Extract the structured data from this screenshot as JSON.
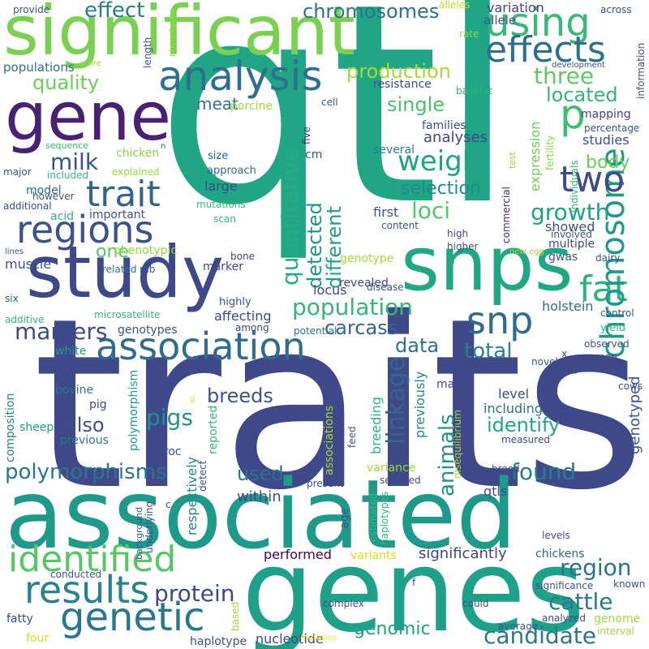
{
  "words": [
    {
      "text": "qtl",
      "color": "#21a685"
    },
    {
      "text": "traits",
      "color": "#3f4889"
    },
    {
      "text": "associated",
      "color": "#1f9a8a"
    },
    {
      "text": "significant",
      "color": "#7ad151"
    },
    {
      "text": "genes",
      "color": "#1fa088"
    },
    {
      "text": "gene",
      "color": "#482173"
    },
    {
      "text": "study",
      "color": "#3e4989"
    },
    {
      "text": "snps",
      "color": "#22a785"
    },
    {
      "text": "analysis",
      "color": "#2e6e8e"
    },
    {
      "text": "using",
      "color": "#38b977"
    },
    {
      "text": "effects",
      "color": "#2e6f8e"
    },
    {
      "text": "regions",
      "color": "#3b528b"
    },
    {
      "text": "trait",
      "color": "#32648e"
    },
    {
      "text": "association",
      "color": "#2f6c8e"
    },
    {
      "text": "identified",
      "color": "#56c667"
    },
    {
      "text": "results",
      "color": "#26828e"
    },
    {
      "text": "genetic",
      "color": "#2a768e"
    },
    {
      "text": "snp",
      "color": "#2f6c8e"
    },
    {
      "text": "fat",
      "color": "#2db27d"
    },
    {
      "text": "chromosome",
      "color": "#1f9a8a"
    },
    {
      "text": "two",
      "color": "#3e4a89"
    },
    {
      "text": "p",
      "color": "#3dbc74"
    },
    {
      "text": "population",
      "color": "#35b779"
    },
    {
      "text": "cattle",
      "color": "#2a788e"
    },
    {
      "text": "region",
      "color": "#2d708e"
    },
    {
      "text": "candidate",
      "color": "#2a788e"
    },
    {
      "text": "effect",
      "color": "#287d8e"
    },
    {
      "text": "chromosomes",
      "color": "#2c728e"
    },
    {
      "text": "quality",
      "color": "#6ccd5a"
    },
    {
      "text": "production",
      "color": "#a5db36"
    },
    {
      "text": "three",
      "color": "#5ec962"
    },
    {
      "text": "located",
      "color": "#33b67a"
    },
    {
      "text": "variation",
      "color": "#414487"
    },
    {
      "text": "allele",
      "color": "#3b528b"
    },
    {
      "text": "meat",
      "color": "#2c728e"
    },
    {
      "text": "single",
      "color": "#4ac16d"
    },
    {
      "text": "milk",
      "color": "#3b528b"
    },
    {
      "text": "weight",
      "color": "#20a486"
    },
    {
      "text": "markers",
      "color": "#3e4a89"
    },
    {
      "text": "quantitative",
      "color": "#25ab82"
    },
    {
      "text": "detected",
      "color": "#20928c"
    },
    {
      "text": "different",
      "color": "#1f9e89"
    },
    {
      "text": "loci",
      "color": "#56c667"
    },
    {
      "text": "growth",
      "color": "#1fa187"
    },
    {
      "text": "body",
      "color": "#6ccd5a"
    },
    {
      "text": "selection",
      "color": "#23898e"
    },
    {
      "text": "data",
      "color": "#2c728e"
    },
    {
      "text": "carcass",
      "color": "#31688e"
    },
    {
      "text": "total",
      "color": "#26828e"
    },
    {
      "text": "linkage",
      "color": "#31688e"
    },
    {
      "text": "identify",
      "color": "#22a785"
    },
    {
      "text": "found",
      "color": "#287c8e"
    },
    {
      "text": "breeds",
      "color": "#3b528b"
    },
    {
      "text": "pigs",
      "color": "#21918c"
    },
    {
      "text": "also",
      "color": "#3c4f8a"
    },
    {
      "text": "polymorphisms",
      "color": "#2a768e"
    },
    {
      "text": "used",
      "color": "#2d708e"
    },
    {
      "text": "animals",
      "color": "#21918c"
    },
    {
      "text": "protein",
      "color": "#3e4989"
    },
    {
      "text": "genomic",
      "color": "#1fa188"
    },
    {
      "text": "significantly",
      "color": "#414487"
    },
    {
      "text": "nucleotide",
      "color": "#3e4989"
    },
    {
      "text": "one",
      "color": "#54c568"
    },
    {
      "text": "analyses",
      "color": "#404688"
    },
    {
      "text": "families",
      "color": "#3b528b"
    },
    {
      "text": "resistance",
      "color": "#3e4a89"
    },
    {
      "text": "mapping",
      "color": "#414487"
    },
    {
      "text": "studies",
      "color": "#3b528b"
    },
    {
      "text": "several",
      "color": "#26828e"
    },
    {
      "text": "first",
      "color": "#39568c"
    },
    {
      "text": "expression",
      "color": "#6ccd5a"
    },
    {
      "text": "fertility",
      "color": "#8fd744"
    },
    {
      "text": "commercial",
      "color": "#482878"
    },
    {
      "text": "genotyped",
      "color": "#39568c"
    },
    {
      "text": "chicken",
      "color": "#86d549"
    },
    {
      "text": "model",
      "color": "#32648e"
    },
    {
      "text": "large",
      "color": "#3e4a89"
    },
    {
      "text": "important",
      "color": "#3b528b"
    },
    {
      "text": "phenotypic",
      "color": "#95d840"
    },
    {
      "text": "muscle",
      "color": "#3b528b"
    },
    {
      "text": "marker",
      "color": "#404688"
    },
    {
      "text": "genotype",
      "color": "#a5db36"
    },
    {
      "text": "revealed",
      "color": "#3e4a89"
    },
    {
      "text": "locus",
      "color": "#3e4989"
    },
    {
      "text": "showed",
      "color": "#3b528b"
    },
    {
      "text": "multiple",
      "color": "#3e4a89"
    },
    {
      "text": "holstein",
      "color": "#2d708e"
    },
    {
      "text": "affecting",
      "color": "#3e4989"
    },
    {
      "text": "genotypes",
      "color": "#3b528b"
    },
    {
      "text": "white",
      "color": "#1f9a8a"
    },
    {
      "text": "bovine",
      "color": "#2c728e"
    },
    {
      "text": "pig",
      "color": "#3e4a89"
    },
    {
      "text": "sheep",
      "color": "#1fa188"
    },
    {
      "text": "composition",
      "color": "#26828e"
    },
    {
      "text": "previous",
      "color": "#2a788e"
    },
    {
      "text": "polymorphism",
      "color": "#1f9e89"
    },
    {
      "text": "duroc",
      "color": "#3e4a89"
    },
    {
      "text": "respectively",
      "color": "#25858e"
    },
    {
      "text": "reported",
      "color": "#35b779"
    },
    {
      "text": "associations",
      "color": "#a0da39"
    },
    {
      "text": "breeding",
      "color": "#2db27d"
    },
    {
      "text": "previously",
      "color": "#25858e"
    },
    {
      "text": "including",
      "color": "#2c728e"
    },
    {
      "text": "level",
      "color": "#3e4a89"
    },
    {
      "text": "variance",
      "color": "#9fda3a"
    },
    {
      "text": "within",
      "color": "#3e4989"
    },
    {
      "text": "qtls",
      "color": "#3e4989"
    },
    {
      "text": "performed",
      "color": "#440154"
    },
    {
      "text": "variants",
      "color": "#d2e21b"
    },
    {
      "text": "chickens",
      "color": "#31688e"
    },
    {
      "text": "provide",
      "color": "#3b528b"
    },
    {
      "text": "populations",
      "color": "#2c728e"
    },
    {
      "text": "alleles",
      "color": "#bddf26"
    },
    {
      "text": "rate",
      "color": "#8fd744"
    },
    {
      "text": "across",
      "color": "#3b528b"
    },
    {
      "text": "development",
      "color": "#3b528b"
    },
    {
      "text": "information",
      "color": "#3b528b"
    },
    {
      "text": "backfat",
      "color": "#2db27d"
    },
    {
      "text": "cell",
      "color": "#3b528b"
    },
    {
      "text": "porcine",
      "color": "#a0da39"
    },
    {
      "text": "percentage",
      "color": "#3b528b"
    },
    {
      "text": "five",
      "color": "#482878"
    },
    {
      "text": "size",
      "color": "#31688e"
    },
    {
      "text": "approach",
      "color": "#31688e"
    },
    {
      "text": "mutations",
      "color": "#35b779"
    },
    {
      "text": "scan",
      "color": "#37b878"
    },
    {
      "text": "content",
      "color": "#3b528b"
    },
    {
      "text": "high",
      "color": "#3e4a89"
    },
    {
      "text": "higher",
      "color": "#3b528b"
    },
    {
      "text": "involved",
      "color": "#3b528b"
    },
    {
      "text": "dairy",
      "color": "#3b528b"
    },
    {
      "text": "new",
      "color": "#a0da39"
    },
    {
      "text": "egg",
      "color": "#a0da39"
    },
    {
      "text": "gwas",
      "color": "#3b528b"
    },
    {
      "text": "bone",
      "color": "#3e4a89"
    },
    {
      "text": "disease",
      "color": "#3b528b"
    },
    {
      "text": "control",
      "color": "#3b528b"
    },
    {
      "text": "yield",
      "color": "#35b779"
    },
    {
      "text": "among",
      "color": "#414487"
    },
    {
      "text": "potential",
      "color": "#2c728e"
    },
    {
      "text": "observed",
      "color": "#3b528b"
    },
    {
      "text": "map",
      "color": "#3e4a89"
    },
    {
      "text": "suggestive",
      "color": "#3e4a89"
    },
    {
      "text": "cows",
      "color": "#3e4a89"
    },
    {
      "text": "novel",
      "color": "#3b528b"
    },
    {
      "text": "measured",
      "color": "#3e4a89"
    },
    {
      "text": "may",
      "color": "#3e4a89"
    },
    {
      "text": "disequilibrium",
      "color": "#a0da39"
    },
    {
      "text": "breed",
      "color": "#3e4a89"
    },
    {
      "text": "mapped",
      "color": "#3e4a89"
    },
    {
      "text": "present",
      "color": "#3e4a89"
    },
    {
      "text": "selected",
      "color": "#3e4a89"
    },
    {
      "text": "estimated",
      "color": "#35b779"
    },
    {
      "text": "haplotypes",
      "color": "#35b779"
    },
    {
      "text": "age",
      "color": "#3b528b"
    },
    {
      "text": "levels",
      "color": "#3b528b"
    },
    {
      "text": "detect",
      "color": "#3b528b"
    },
    {
      "text": "feed",
      "color": "#3b528b"
    },
    {
      "text": "complex",
      "color": "#3b528b"
    },
    {
      "text": "could",
      "color": "#3b528b"
    },
    {
      "text": "average",
      "color": "#3b528b"
    },
    {
      "text": "analyzed",
      "color": "#3e4a89"
    },
    {
      "text": "significance",
      "color": "#3b528b"
    },
    {
      "text": "known",
      "color": "#3b528b"
    },
    {
      "text": "genome",
      "color": "#a0da39"
    },
    {
      "text": "interval",
      "color": "#a0da39"
    },
    {
      "text": "mutation",
      "color": "#fde725"
    },
    {
      "text": "haplotype",
      "color": "#3b528b"
    },
    {
      "text": "four",
      "color": "#d2e21b"
    },
    {
      "text": "based",
      "color": "#a0da39"
    },
    {
      "text": "fatty",
      "color": "#3e4989"
    },
    {
      "text": "conducted",
      "color": "#3b528b"
    },
    {
      "text": "background",
      "color": "#3b528b"
    },
    {
      "text": "underlying",
      "color": "#3b528b"
    },
    {
      "text": "phenotypes",
      "color": "#a0da39"
    },
    {
      "text": "score",
      "color": "#a0da39"
    },
    {
      "text": "sequence",
      "color": "#35b779"
    },
    {
      "text": "included",
      "color": "#35b779"
    },
    {
      "text": "major",
      "color": "#3b528b"
    },
    {
      "text": "however",
      "color": "#3b528b"
    },
    {
      "text": "additional",
      "color": "#3b528b"
    },
    {
      "text": "acid",
      "color": "#35b779"
    },
    {
      "text": "explained",
      "color": "#a0da39"
    },
    {
      "text": "lines",
      "color": "#3b528b"
    },
    {
      "text": "related",
      "color": "#2c728e"
    },
    {
      "text": "mb",
      "color": "#3b528b"
    },
    {
      "text": "six",
      "color": "#3b528b"
    },
    {
      "text": "additive",
      "color": "#35b779"
    },
    {
      "text": "microsatellite",
      "color": "#35b779"
    },
    {
      "text": "highly",
      "color": "#3b528b"
    },
    {
      "text": "length",
      "color": "#3b528b"
    },
    {
      "text": "cm",
      "color": "#3b528b"
    },
    {
      "text": "test",
      "color": "#a0da39"
    },
    {
      "text": "individuals",
      "color": "#35b779"
    },
    {
      "text": "x",
      "color": "#3b528b"
    },
    {
      "text": "c",
      "color": "#3b528b"
    },
    {
      "text": "f",
      "color": "#3b528b"
    },
    {
      "text": "g",
      "color": "#d2e21b"
    },
    {
      "text": "n",
      "color": "#3b528b"
    }
  ]
}
